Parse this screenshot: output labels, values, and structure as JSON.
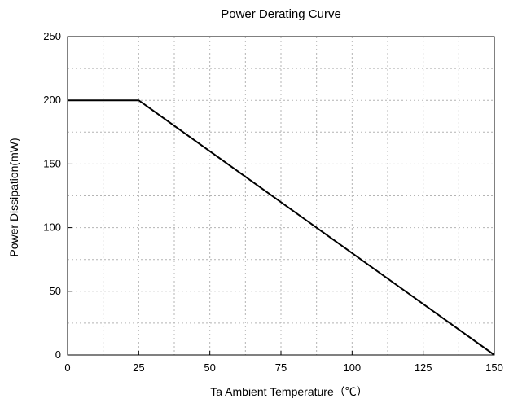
{
  "chart_data": {
    "type": "line",
    "title": "Power Derating Curve",
    "xlabel": "Ta Ambient Temperature（℃）",
    "ylabel": "Power Dissipation(mW)",
    "xlim": [
      0,
      150
    ],
    "ylim": [
      0,
      250
    ],
    "x_ticks": [
      0,
      25,
      50,
      75,
      100,
      125,
      150
    ],
    "y_ticks": [
      0,
      50,
      100,
      150,
      200,
      250
    ],
    "x_minor_step": 12.5,
    "y_minor_step": 25,
    "grid": true,
    "grid_style": "dotted",
    "series": [
      {
        "x": [
          0,
          25,
          150
        ],
        "y": [
          200,
          200,
          0
        ],
        "color": "#000000"
      }
    ]
  }
}
